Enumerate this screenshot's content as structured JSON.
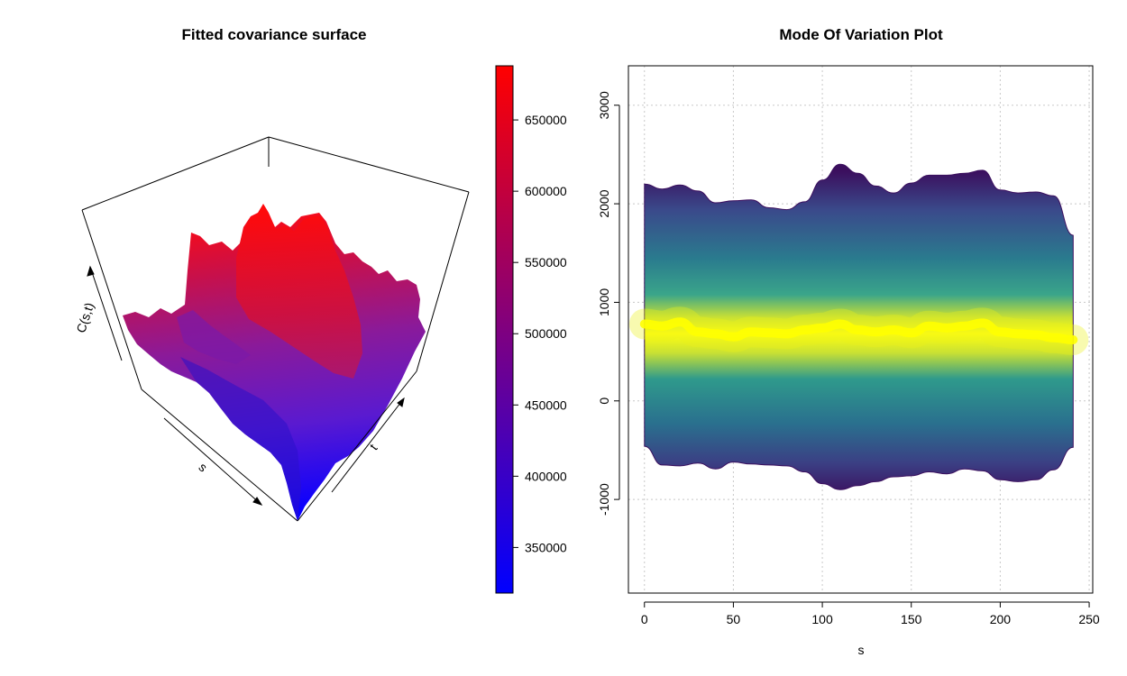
{
  "chart_data": [
    {
      "type": "surface3d",
      "title": "Fitted covariance surface",
      "axis_labels": {
        "s": "s",
        "t": "t",
        "z": "C(s,t)"
      },
      "colorbar": {
        "min": 318000,
        "max": 688000,
        "ticks": [
          350000,
          400000,
          450000,
          500000,
          550000,
          600000,
          650000
        ],
        "tick_labels": [
          "350000",
          "400000",
          "450000",
          "500000",
          "550000",
          "600000",
          "650000"
        ],
        "low_color": "#0000ff",
        "high_color": "#ff0000"
      },
      "surface": {
        "s_range": [
          0,
          240
        ],
        "t_range": [
          0,
          240
        ],
        "z_range": [
          318000,
          688000
        ],
        "peak": {
          "s": 120,
          "t": 120,
          "z": 688000
        },
        "min": {
          "s": 240,
          "t": 0,
          "z": 318000
        }
      }
    },
    {
      "type": "area",
      "title": "Mode Of Variation Plot",
      "xlabel": "s",
      "ylabel": "",
      "xlim": [
        -9,
        252
      ],
      "ylim": [
        -1950,
        3400
      ],
      "x_ticks": [
        0,
        50,
        100,
        150,
        200,
        250
      ],
      "x_tick_labels": [
        "0",
        "50",
        "100",
        "150",
        "200",
        "250"
      ],
      "y_ticks": [
        -1000,
        0,
        1000,
        2000,
        3000
      ],
      "y_tick_labels": [
        "-1000",
        "0",
        "1000",
        "2000",
        "3000"
      ],
      "grid": true,
      "palette": [
        "#440154",
        "#3b528b",
        "#21908c",
        "#5dc863",
        "#fde725",
        "#ffff00"
      ],
      "x": [
        0,
        10,
        20,
        30,
        40,
        50,
        60,
        70,
        80,
        90,
        100,
        110,
        120,
        130,
        140,
        150,
        160,
        170,
        180,
        190,
        200,
        210,
        220,
        230,
        241
      ],
      "mean": [
        780,
        760,
        800,
        700,
        680,
        650,
        700,
        690,
        680,
        720,
        740,
        780,
        720,
        700,
        720,
        690,
        760,
        740,
        760,
        790,
        700,
        680,
        670,
        640,
        620
      ],
      "upper": [
        2200,
        2150,
        2190,
        2130,
        2010,
        2030,
        2040,
        1960,
        1940,
        2020,
        2240,
        2400,
        2310,
        2180,
        2110,
        2210,
        2290,
        2290,
        2310,
        2340,
        2140,
        2110,
        2120,
        2080,
        1680
      ],
      "lower": [
        -460,
        -650,
        -660,
        -630,
        -690,
        -620,
        -640,
        -650,
        -660,
        -720,
        -840,
        -900,
        -860,
        -820,
        -770,
        -760,
        -720,
        -740,
        -690,
        -710,
        -800,
        -820,
        -800,
        -700,
        -470
      ]
    }
  ]
}
